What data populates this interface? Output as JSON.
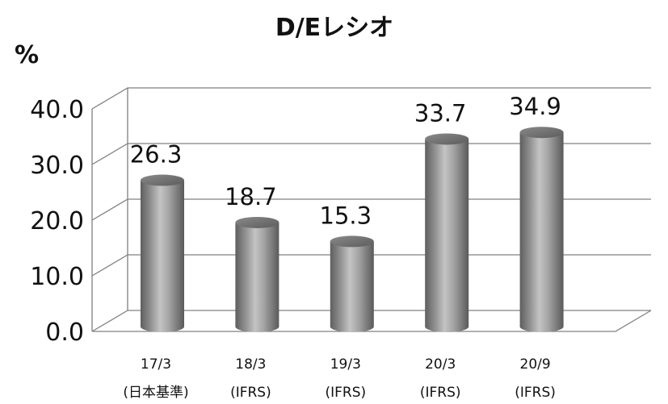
{
  "chart_data": {
    "type": "bar",
    "title": "D/Eレシオ",
    "ylabel": "%",
    "categories": [
      [
        "17/3",
        "(日本基準)"
      ],
      [
        "18/3",
        "(IFRS)"
      ],
      [
        "19/3",
        "(IFRS)"
      ],
      [
        "20/3",
        "(IFRS)"
      ],
      [
        "20/9",
        "(IFRS)"
      ]
    ],
    "values": [
      26.3,
      18.7,
      15.3,
      33.7,
      34.9
    ],
    "value_labels": [
      "26.3",
      "18.7",
      "15.3",
      "33.7",
      "34.9"
    ],
    "yticks": [
      "0.0",
      "10.0",
      "20.0",
      "30.0",
      "40.0"
    ],
    "ylim": [
      0,
      40
    ],
    "grid": true,
    "bar_shape": "cylinder-3d",
    "bar_color": "#9a9a9a",
    "grid_color": "#808080"
  }
}
